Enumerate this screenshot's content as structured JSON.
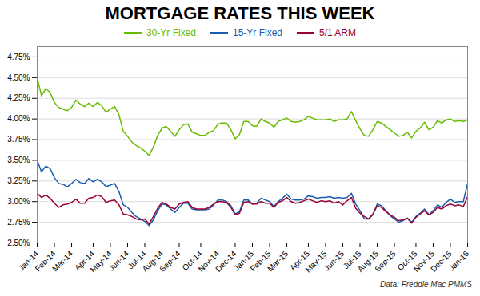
{
  "chart_data": {
    "type": "line",
    "title": "MORTGAGE RATES THIS WEEK",
    "annotations": [
      "Data: Freddie Mac PMMS"
    ],
    "categories": [
      "Jan-14",
      null,
      null,
      null,
      "Feb-14",
      null,
      null,
      null,
      "Mar-14",
      null,
      null,
      null,
      null,
      "Apr-14",
      null,
      null,
      null,
      "May-14",
      null,
      null,
      null,
      "Jun-14",
      null,
      null,
      null,
      "Jul-14",
      null,
      null,
      null,
      "Aug-14",
      null,
      null,
      null,
      "Sep-14",
      null,
      null,
      null,
      null,
      "Oct-14",
      null,
      null,
      null,
      "Nov-14",
      null,
      null,
      null,
      "Dec-14",
      null,
      null,
      null,
      "Jan-15",
      null,
      null,
      null,
      "Feb-15",
      null,
      null,
      null,
      "Mar-15",
      null,
      null,
      null,
      null,
      "Apr-15",
      null,
      null,
      null,
      "May-15",
      null,
      null,
      null,
      "Jun-15",
      null,
      null,
      null,
      "Jul-15",
      null,
      null,
      null,
      "Aug-15",
      null,
      null,
      null,
      "Sep-15",
      null,
      null,
      null,
      null,
      "Oct-15",
      null,
      null,
      null,
      "Nov-15",
      null,
      null,
      null,
      "Dec-15",
      null,
      null,
      null,
      "Jan-16"
    ],
    "series": [
      {
        "name": "30-Yr Fixed",
        "color": "#66bb00",
        "values": [
          4.5,
          4.28,
          4.37,
          4.32,
          4.2,
          4.14,
          4.12,
          4.1,
          4.14,
          4.23,
          4.18,
          4.15,
          4.19,
          4.15,
          4.2,
          4.16,
          4.08,
          4.12,
          4.15,
          4.05,
          3.85,
          3.79,
          3.72,
          3.68,
          3.65,
          3.61,
          3.56,
          3.66,
          3.8,
          3.89,
          3.91,
          3.85,
          3.79,
          3.87,
          3.93,
          3.94,
          3.84,
          3.82,
          3.8,
          3.8,
          3.84,
          3.86,
          3.94,
          3.95,
          3.95,
          3.87,
          3.76,
          3.81,
          3.97,
          3.97,
          3.92,
          3.91,
          4.0,
          3.97,
          3.95,
          3.9,
          3.97,
          3.99,
          4.01,
          3.97,
          3.96,
          3.97,
          3.99,
          4.03,
          4.01,
          3.99,
          3.99,
          3.99,
          4.0,
          3.97,
          3.99,
          3.99,
          4.0,
          4.09,
          3.98,
          3.88,
          3.8,
          3.79,
          3.87,
          3.97,
          3.95,
          3.91,
          3.87,
          3.83,
          3.79,
          3.8,
          3.84,
          3.77,
          3.85,
          3.89,
          3.96,
          3.87,
          3.9,
          3.98,
          3.95,
          3.99,
          4.0,
          3.97,
          3.98,
          3.97,
          3.99
        ]
      },
      {
        "name": "15-Yr Fixed",
        "color": "#1a5cb0",
        "values": [
          3.5,
          3.36,
          3.43,
          3.4,
          3.29,
          3.22,
          3.21,
          3.18,
          3.22,
          3.27,
          3.23,
          3.22,
          3.28,
          3.24,
          3.27,
          3.24,
          3.18,
          3.2,
          3.22,
          3.12,
          2.96,
          2.93,
          2.87,
          2.82,
          2.79,
          2.76,
          2.71,
          2.78,
          2.89,
          2.97,
          2.96,
          2.91,
          2.87,
          2.93,
          2.98,
          2.98,
          2.91,
          2.9,
          2.9,
          2.9,
          2.91,
          2.96,
          3.02,
          3.02,
          3.0,
          2.95,
          2.85,
          2.88,
          3.02,
          3.02,
          2.97,
          2.98,
          3.04,
          3.02,
          3.0,
          2.94,
          3.0,
          3.04,
          3.09,
          3.03,
          3.02,
          3.02,
          3.03,
          3.07,
          3.06,
          3.04,
          3.05,
          3.05,
          3.06,
          3.04,
          3.05,
          3.04,
          3.05,
          3.1,
          2.97,
          2.89,
          2.79,
          2.79,
          2.84,
          2.97,
          2.95,
          2.89,
          2.83,
          2.79,
          2.75,
          2.77,
          2.8,
          2.75,
          2.82,
          2.86,
          2.91,
          2.84,
          2.89,
          2.96,
          2.93,
          2.99,
          3.03,
          2.99,
          3.0,
          3.0,
          3.22
        ]
      },
      {
        "name": "5/1 ARM",
        "color": "#990033",
        "values": [
          3.1,
          3.05,
          3.08,
          3.04,
          2.98,
          2.93,
          2.96,
          2.97,
          2.99,
          3.03,
          2.98,
          2.98,
          3.04,
          3.05,
          3.08,
          3.06,
          2.99,
          3.01,
          3.02,
          2.96,
          2.85,
          2.84,
          2.82,
          2.79,
          2.78,
          2.79,
          2.73,
          2.82,
          2.92,
          2.99,
          2.97,
          2.93,
          2.91,
          2.97,
          2.99,
          3.0,
          2.93,
          2.91,
          2.91,
          2.91,
          2.93,
          2.97,
          3.0,
          3.0,
          2.99,
          2.93,
          2.84,
          2.86,
          2.99,
          3.0,
          2.97,
          2.97,
          3.0,
          2.98,
          2.98,
          2.93,
          2.99,
          3.01,
          3.05,
          3.0,
          2.98,
          2.99,
          3.01,
          3.03,
          3.01,
          2.99,
          3.01,
          3.0,
          3.01,
          2.98,
          3.0,
          2.96,
          3.01,
          3.05,
          2.92,
          2.86,
          2.82,
          2.79,
          2.85,
          2.95,
          2.93,
          2.88,
          2.84,
          2.81,
          2.77,
          2.78,
          2.8,
          2.74,
          2.81,
          2.85,
          2.89,
          2.84,
          2.87,
          2.93,
          2.91,
          2.95,
          2.97,
          2.95,
          2.96,
          2.94,
          3.06
        ]
      }
    ],
    "ylim": [
      2.5,
      4.875
    ],
    "yticks": [
      {
        "value": 2.5,
        "label": "2.50%"
      },
      {
        "value": 2.75,
        "label": "2.75%"
      },
      {
        "value": 3.0,
        "label": "3.00%"
      },
      {
        "value": 3.25,
        "label": "3.25%"
      },
      {
        "value": 3.5,
        "label": "3.50%"
      },
      {
        "value": 3.75,
        "label": "3.75%"
      },
      {
        "value": 4.0,
        "label": "4.00%"
      },
      {
        "value": 4.25,
        "label": "4.25%"
      },
      {
        "value": 4.5,
        "label": "4.50%"
      },
      {
        "value": 4.75,
        "label": "4.75%"
      }
    ],
    "grid": true,
    "legend": "top"
  }
}
